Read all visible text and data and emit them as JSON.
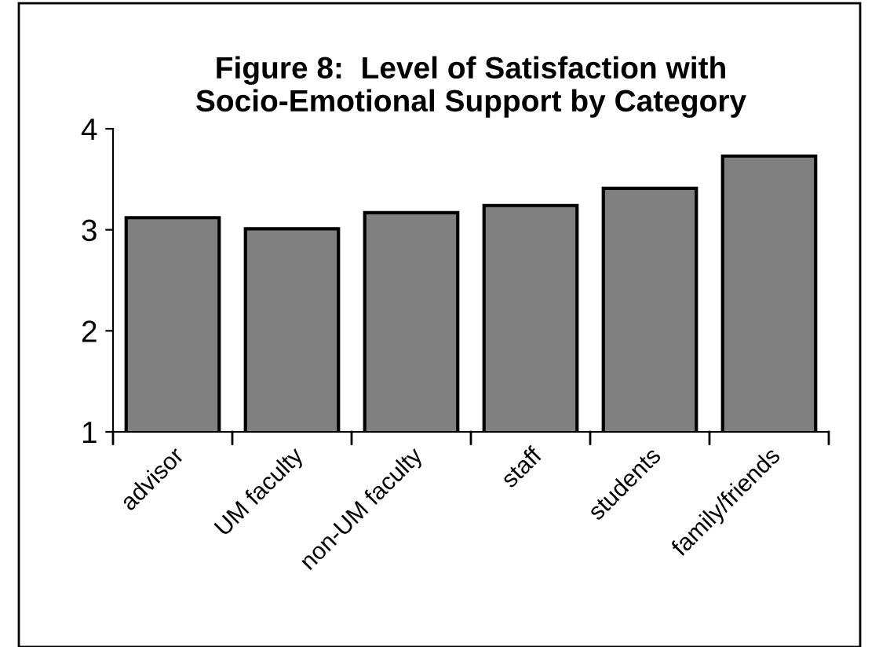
{
  "chart_data": {
    "type": "bar",
    "title": "Figure 8:  Level of Satisfaction with\nSocio-Emotional Support by Category",
    "categories": [
      "advisor",
      "UM faculty",
      "non-UM faculty",
      "staff",
      "students",
      "family/friends"
    ],
    "values": [
      3.12,
      3.01,
      3.17,
      3.24,
      3.41,
      3.73
    ],
    "color": "#808080",
    "ylim": [
      1,
      4
    ],
    "yticks": [
      1,
      2,
      3,
      4
    ],
    "grid": false
  }
}
